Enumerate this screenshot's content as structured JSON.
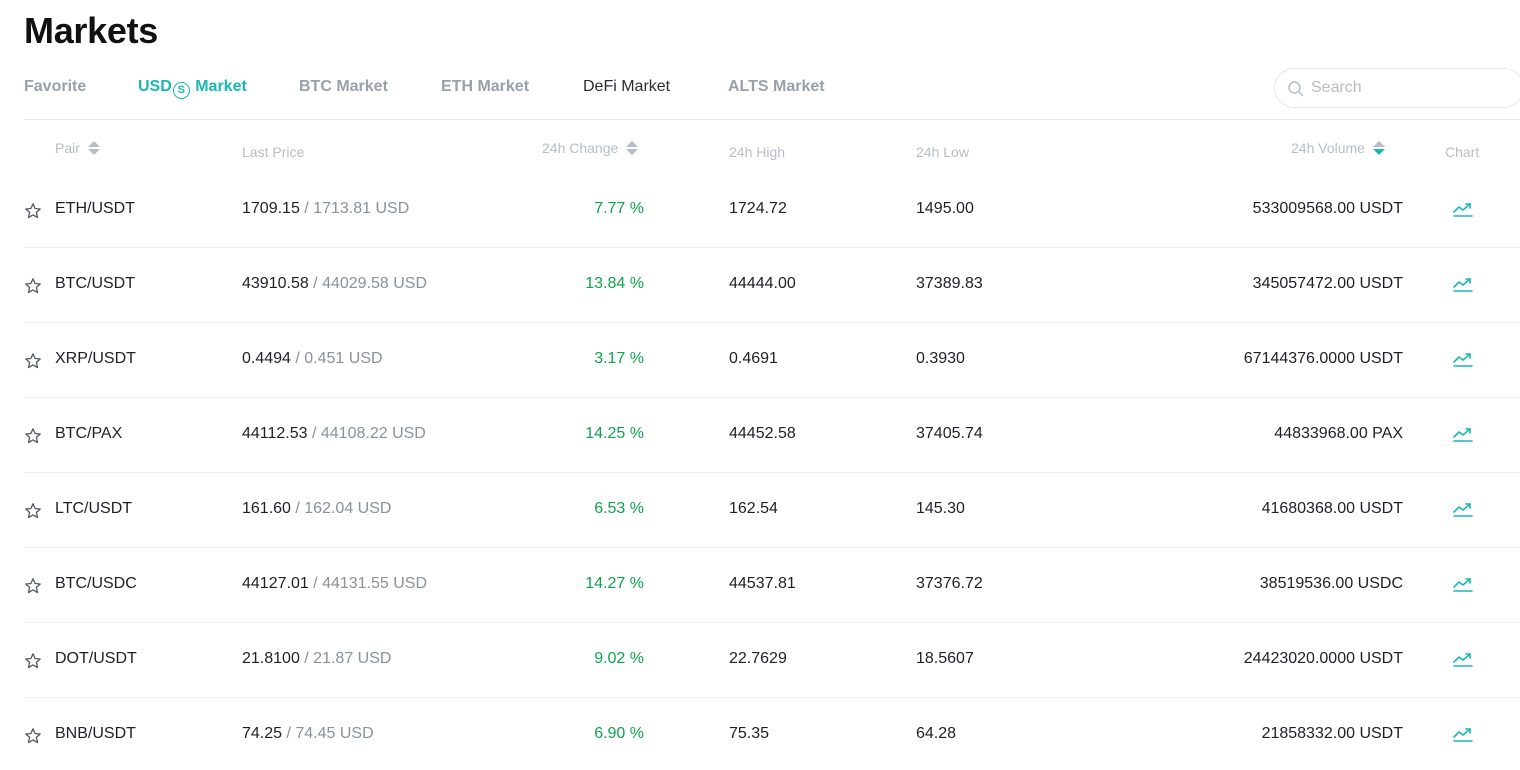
{
  "page": {
    "title": "Markets"
  },
  "tabs": [
    {
      "label": "Favorite"
    },
    {
      "label_pre": "USD",
      "label_glyph": "S",
      "label_post": " Market"
    },
    {
      "label": "BTC Market"
    },
    {
      "label": "ETH Market"
    },
    {
      "label": "DeFi Market"
    },
    {
      "label": "ALTS Market"
    }
  ],
  "active_tab": "USDⓈ Market",
  "search": {
    "placeholder": "Search",
    "value": ""
  },
  "columns": {
    "pair": "Pair",
    "last_price": "Last Price",
    "change_24h": "24h Change",
    "high_24h": "24h High",
    "low_24h": "24h Low",
    "volume_24h": "24h Volume",
    "chart": "Chart"
  },
  "sort": {
    "column": "24h Volume",
    "direction": "desc"
  },
  "colors": {
    "accent": "#1bb8b3",
    "positive": "#0ea34f",
    "muted": "#9aa0ab"
  },
  "icons": {
    "search": "search-icon",
    "star": "star-icon",
    "chart": "trend-chart-icon",
    "sort": "sort-icon"
  },
  "rows": [
    {
      "pair": "ETH/USDT",
      "price": "1709.15",
      "price_usd": " / 1713.81 USD",
      "change": "7.77 %",
      "high": "1724.72",
      "low": "1495.00",
      "volume": "533009568.00 USDT"
    },
    {
      "pair": "BTC/USDT",
      "price": "43910.58",
      "price_usd": " / 44029.58 USD",
      "change": "13.84 %",
      "high": "44444.00",
      "low": "37389.83",
      "volume": "345057472.00 USDT"
    },
    {
      "pair": "XRP/USDT",
      "price": "0.4494",
      "price_usd": " / 0.451 USD",
      "change": "3.17 %",
      "high": "0.4691",
      "low": "0.3930",
      "volume": "67144376.0000 USDT"
    },
    {
      "pair": "BTC/PAX",
      "price": "44112.53",
      "price_usd": " / 44108.22 USD",
      "change": "14.25 %",
      "high": "44452.58",
      "low": "37405.74",
      "volume": "44833968.00 PAX"
    },
    {
      "pair": "LTC/USDT",
      "price": "161.60",
      "price_usd": " / 162.04 USD",
      "change": "6.53 %",
      "high": "162.54",
      "low": "145.30",
      "volume": "41680368.00 USDT"
    },
    {
      "pair": "BTC/USDC",
      "price": "44127.01",
      "price_usd": " / 44131.55 USD",
      "change": "14.27 %",
      "high": "44537.81",
      "low": "37376.72",
      "volume": "38519536.00 USDC"
    },
    {
      "pair": "DOT/USDT",
      "price": "21.8100",
      "price_usd": " / 21.87 USD",
      "change": "9.02 %",
      "high": "22.7629",
      "low": "18.5607",
      "volume": "24423020.0000 USDT"
    },
    {
      "pair": "BNB/USDT",
      "price": "74.25",
      "price_usd": " / 74.45 USD",
      "change": "6.90 %",
      "high": "75.35",
      "low": "64.28",
      "volume": "21858332.00 USDT"
    }
  ]
}
